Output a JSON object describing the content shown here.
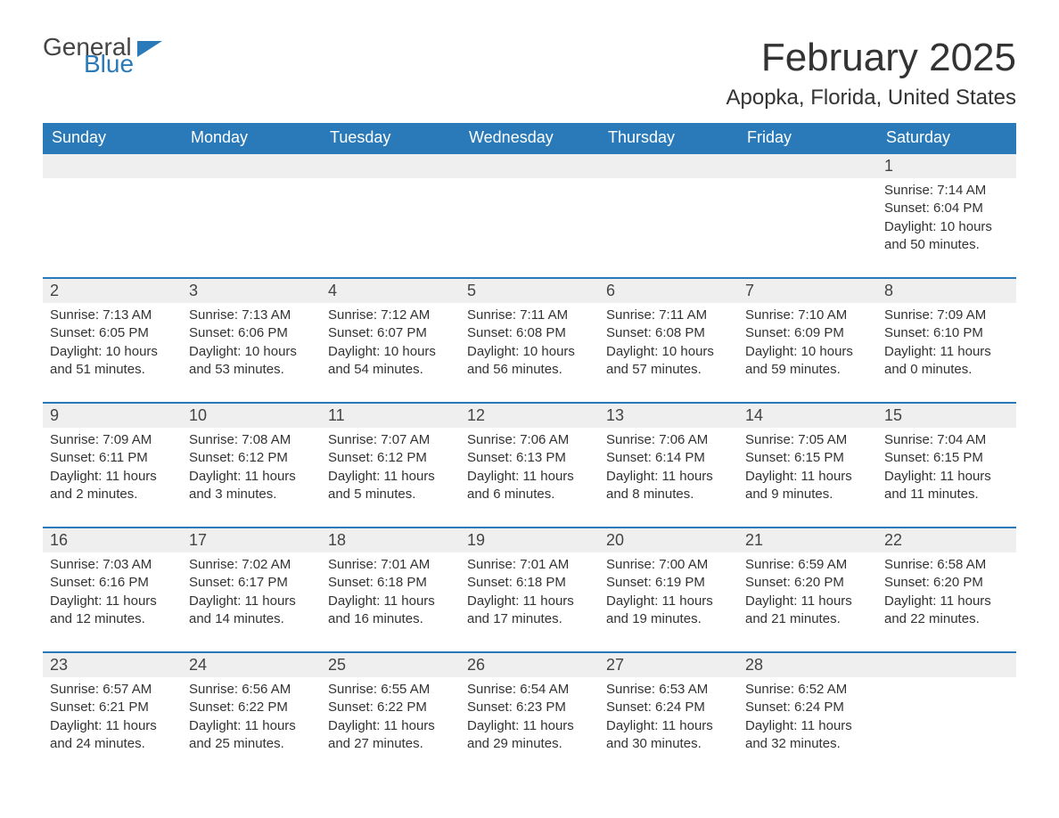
{
  "logo": {
    "part1": "General",
    "part2": "Blue",
    "icon_color": "#2a7ab9"
  },
  "title": "February 2025",
  "location": "Apopka, Florida, United States",
  "colors": {
    "header_bg": "#2a7ab9",
    "header_text": "#ffffff",
    "daynum_bg": "#efefef",
    "row_border": "#2a7ab9",
    "body_text": "#333333",
    "page_bg": "#ffffff"
  },
  "weekdays": [
    "Sunday",
    "Monday",
    "Tuesday",
    "Wednesday",
    "Thursday",
    "Friday",
    "Saturday"
  ],
  "weeks": [
    [
      null,
      null,
      null,
      null,
      null,
      null,
      {
        "day": "1",
        "sunrise": "7:14 AM",
        "sunset": "6:04 PM",
        "daylight": "10 hours and 50 minutes."
      }
    ],
    [
      {
        "day": "2",
        "sunrise": "7:13 AM",
        "sunset": "6:05 PM",
        "daylight": "10 hours and 51 minutes."
      },
      {
        "day": "3",
        "sunrise": "7:13 AM",
        "sunset": "6:06 PM",
        "daylight": "10 hours and 53 minutes."
      },
      {
        "day": "4",
        "sunrise": "7:12 AM",
        "sunset": "6:07 PM",
        "daylight": "10 hours and 54 minutes."
      },
      {
        "day": "5",
        "sunrise": "7:11 AM",
        "sunset": "6:08 PM",
        "daylight": "10 hours and 56 minutes."
      },
      {
        "day": "6",
        "sunrise": "7:11 AM",
        "sunset": "6:08 PM",
        "daylight": "10 hours and 57 minutes."
      },
      {
        "day": "7",
        "sunrise": "7:10 AM",
        "sunset": "6:09 PM",
        "daylight": "10 hours and 59 minutes."
      },
      {
        "day": "8",
        "sunrise": "7:09 AM",
        "sunset": "6:10 PM",
        "daylight": "11 hours and 0 minutes."
      }
    ],
    [
      {
        "day": "9",
        "sunrise": "7:09 AM",
        "sunset": "6:11 PM",
        "daylight": "11 hours and 2 minutes."
      },
      {
        "day": "10",
        "sunrise": "7:08 AM",
        "sunset": "6:12 PM",
        "daylight": "11 hours and 3 minutes."
      },
      {
        "day": "11",
        "sunrise": "7:07 AM",
        "sunset": "6:12 PM",
        "daylight": "11 hours and 5 minutes."
      },
      {
        "day": "12",
        "sunrise": "7:06 AM",
        "sunset": "6:13 PM",
        "daylight": "11 hours and 6 minutes."
      },
      {
        "day": "13",
        "sunrise": "7:06 AM",
        "sunset": "6:14 PM",
        "daylight": "11 hours and 8 minutes."
      },
      {
        "day": "14",
        "sunrise": "7:05 AM",
        "sunset": "6:15 PM",
        "daylight": "11 hours and 9 minutes."
      },
      {
        "day": "15",
        "sunrise": "7:04 AM",
        "sunset": "6:15 PM",
        "daylight": "11 hours and 11 minutes."
      }
    ],
    [
      {
        "day": "16",
        "sunrise": "7:03 AM",
        "sunset": "6:16 PM",
        "daylight": "11 hours and 12 minutes."
      },
      {
        "day": "17",
        "sunrise": "7:02 AM",
        "sunset": "6:17 PM",
        "daylight": "11 hours and 14 minutes."
      },
      {
        "day": "18",
        "sunrise": "7:01 AM",
        "sunset": "6:18 PM",
        "daylight": "11 hours and 16 minutes."
      },
      {
        "day": "19",
        "sunrise": "7:01 AM",
        "sunset": "6:18 PM",
        "daylight": "11 hours and 17 minutes."
      },
      {
        "day": "20",
        "sunrise": "7:00 AM",
        "sunset": "6:19 PM",
        "daylight": "11 hours and 19 minutes."
      },
      {
        "day": "21",
        "sunrise": "6:59 AM",
        "sunset": "6:20 PM",
        "daylight": "11 hours and 21 minutes."
      },
      {
        "day": "22",
        "sunrise": "6:58 AM",
        "sunset": "6:20 PM",
        "daylight": "11 hours and 22 minutes."
      }
    ],
    [
      {
        "day": "23",
        "sunrise": "6:57 AM",
        "sunset": "6:21 PM",
        "daylight": "11 hours and 24 minutes."
      },
      {
        "day": "24",
        "sunrise": "6:56 AM",
        "sunset": "6:22 PM",
        "daylight": "11 hours and 25 minutes."
      },
      {
        "day": "25",
        "sunrise": "6:55 AM",
        "sunset": "6:22 PM",
        "daylight": "11 hours and 27 minutes."
      },
      {
        "day": "26",
        "sunrise": "6:54 AM",
        "sunset": "6:23 PM",
        "daylight": "11 hours and 29 minutes."
      },
      {
        "day": "27",
        "sunrise": "6:53 AM",
        "sunset": "6:24 PM",
        "daylight": "11 hours and 30 minutes."
      },
      {
        "day": "28",
        "sunrise": "6:52 AM",
        "sunset": "6:24 PM",
        "daylight": "11 hours and 32 minutes."
      },
      null
    ]
  ],
  "labels": {
    "sunrise": "Sunrise: ",
    "sunset": "Sunset: ",
    "daylight": "Daylight: "
  }
}
